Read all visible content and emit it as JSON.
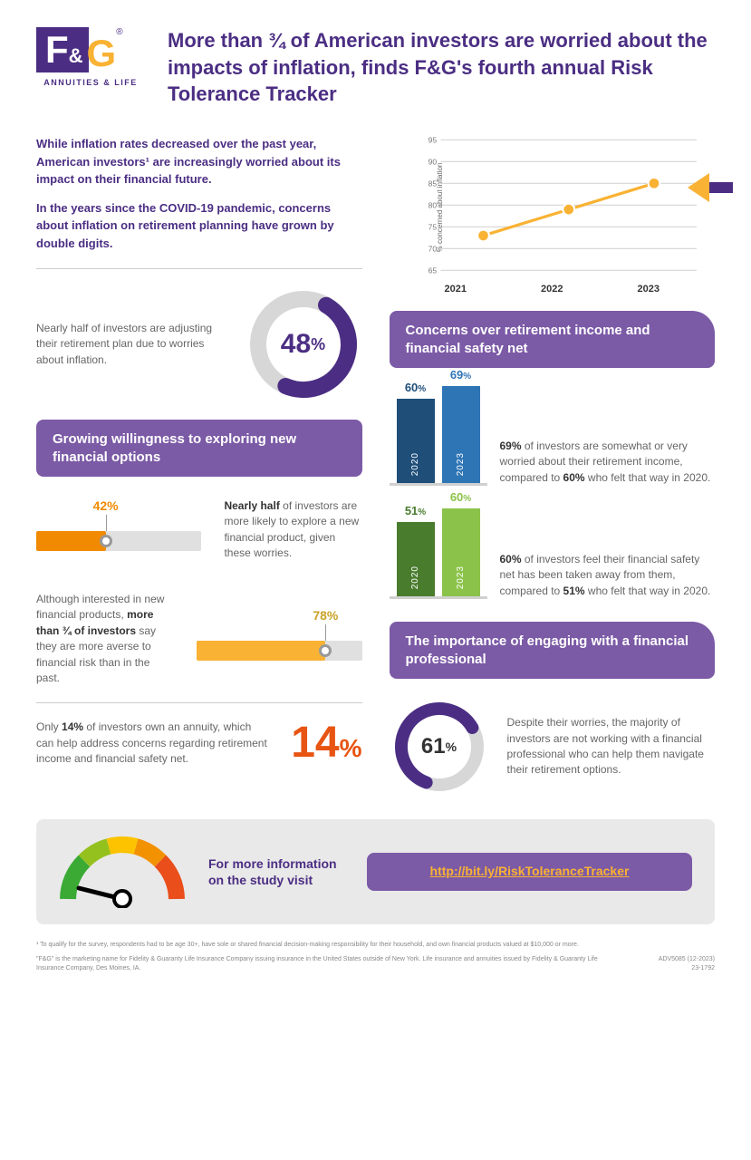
{
  "brand": {
    "f": "F",
    "amp": "&",
    "g": "G",
    "tagline": "ANNUITIES & LIFE"
  },
  "headline": "More than ¾ of American investors are worried about the impacts of inflation, finds F&G's fourth annual Risk Tolerance Tracker",
  "intro": {
    "p1": "While inflation rates decreased over the past year, American investors¹ are increasingly worried about its impact on their financial future.",
    "p2": "In the years since the COVID-19 pandemic, concerns about inflation on retirement planning have grown by double digits."
  },
  "line_chart": {
    "ylabel": "% concerned about inflation",
    "ymin": 65,
    "ymax": 95,
    "ticks": [
      65,
      70,
      75,
      80,
      85,
      90,
      95
    ],
    "years": [
      "2021",
      "2022",
      "2023"
    ],
    "values": [
      73,
      79,
      85
    ],
    "line_color": "#f9b233",
    "point_color": "#f9b233",
    "grid_color": "#d5d5d5",
    "arrow_stem": "#4b2e83",
    "arrow_head": "#f9b233"
  },
  "donut48": {
    "value": 48,
    "display": "48",
    "pct": "%",
    "color_fill": "#4b2e83",
    "color_track": "#d7d7d7",
    "text": "Nearly half of investors are adjusting their retirement plan due to worries about inflation."
  },
  "section_willing": "Growing willingness to exploring new financial options",
  "slider42": {
    "value": 42,
    "display": "42%",
    "fill": "#f18a00",
    "text_color": "#f18a00",
    "caption_lead": "Nearly half",
    "caption_rest": " of investors are more likely to explore a new financial product, given these worries."
  },
  "slider78": {
    "value": 78,
    "display": "78%",
    "fill": "#f9b233",
    "text_color": "#f9b233",
    "caption_pre": "Although interested in new financial products, ",
    "caption_bold": "more than ¾ of investors",
    "caption_post": " say they are more averse to financial risk than in the past."
  },
  "stat14": {
    "text_pre": "Only ",
    "text_bold": "14%",
    "text_post": " of investors own an annuity, which can help address concerns regarding retirement income and financial safety net.",
    "display": "14",
    "pct": "%",
    "color": "#e85412"
  },
  "section_concerns": "Concerns over retirement income and financial safety net",
  "bars_blue": {
    "a_year": "2020",
    "a_val": 60,
    "a_disp": "60",
    "a_color": "#1f4e79",
    "b_year": "2023",
    "b_val": 69,
    "b_disp": "69",
    "b_color": "#2e75b6",
    "text_bold1": "69%",
    "text_mid": " of investors are somewhat or very worried about their retirement income, compared to ",
    "text_bold2": "60%",
    "text_end": " who felt that way in 2020."
  },
  "bars_green": {
    "a_year": "2020",
    "a_val": 51,
    "a_disp": "51",
    "a_color": "#4a7c2e",
    "b_year": "2023",
    "b_val": 60,
    "b_disp": "60",
    "b_color": "#8bc34a",
    "text_bold1": "60%",
    "text_mid": " of investors feel their financial safety net has been taken away from them, compared to ",
    "text_bold2": "51%",
    "text_end": " who felt that way in 2020."
  },
  "section_prof": "The importance of engaging with a financial professional",
  "donut61": {
    "value": 61,
    "display": "61",
    "pct": "%",
    "color_fill": "#4b2e83",
    "color_track": "#d7d7d7",
    "text": "Despite their worries, the majority of investors are not working with a financial professional who can help them navigate their retirement options."
  },
  "cta": {
    "text": "For more information on the study visit",
    "link": "http://bit.ly/RiskToleranceTracker"
  },
  "gauge": {
    "colors": [
      "#3aaa35",
      "#95c11f",
      "#fdc300",
      "#f39200",
      "#e94e1b"
    ],
    "needle": "#000000"
  },
  "foot": {
    "fn1": "¹  To qualify for the survey, respondents had to be age 30+, have sole or shared financial decision-making responsibility for their household, and own financial products valued at $10,000 or more.",
    "fn2": "\"F&G\" is the marketing name for Fidelity & Guaranty Life Insurance Company issuing insurance in the United States outside of New York. Life insurance and annuities issued by Fidelity & Guaranty Life Insurance Company, Des Moines, IA.",
    "code1": "ADV5085 (12-2023)",
    "code2": "23-1792"
  }
}
